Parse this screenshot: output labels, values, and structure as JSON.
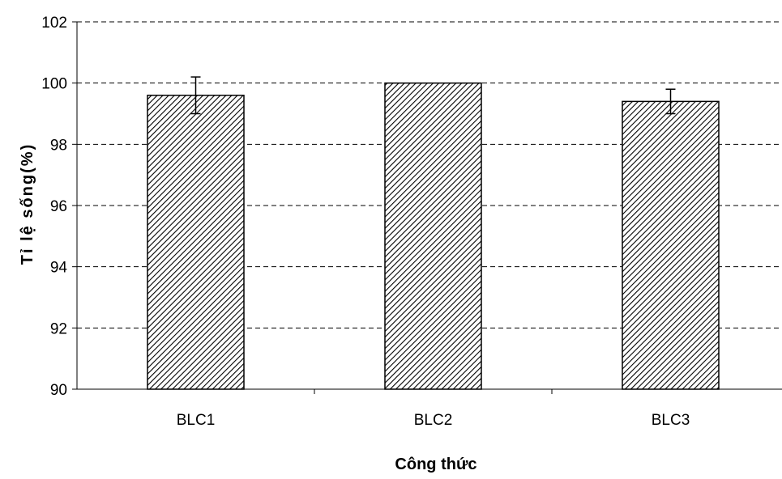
{
  "chart_data": {
    "type": "bar",
    "title": "",
    "xlabel": "Công thức",
    "ylabel": "Tỉ lệ sống(%)",
    "categories": [
      "BLC1",
      "BLC2",
      "BLC3"
    ],
    "values": [
      99.6,
      100.0,
      99.4
    ],
    "error": [
      0.6,
      0.0,
      0.4
    ],
    "ylim": [
      90,
      102
    ],
    "yticks": [
      "90",
      "92",
      "94",
      "96",
      "98",
      "100",
      "102"
    ],
    "grid": true,
    "legend": "none",
    "colors": {
      "bar_stroke": "#000000",
      "bar_hatch": "#000000",
      "bar_fill": "#ffffff",
      "grid": "#000000"
    }
  }
}
